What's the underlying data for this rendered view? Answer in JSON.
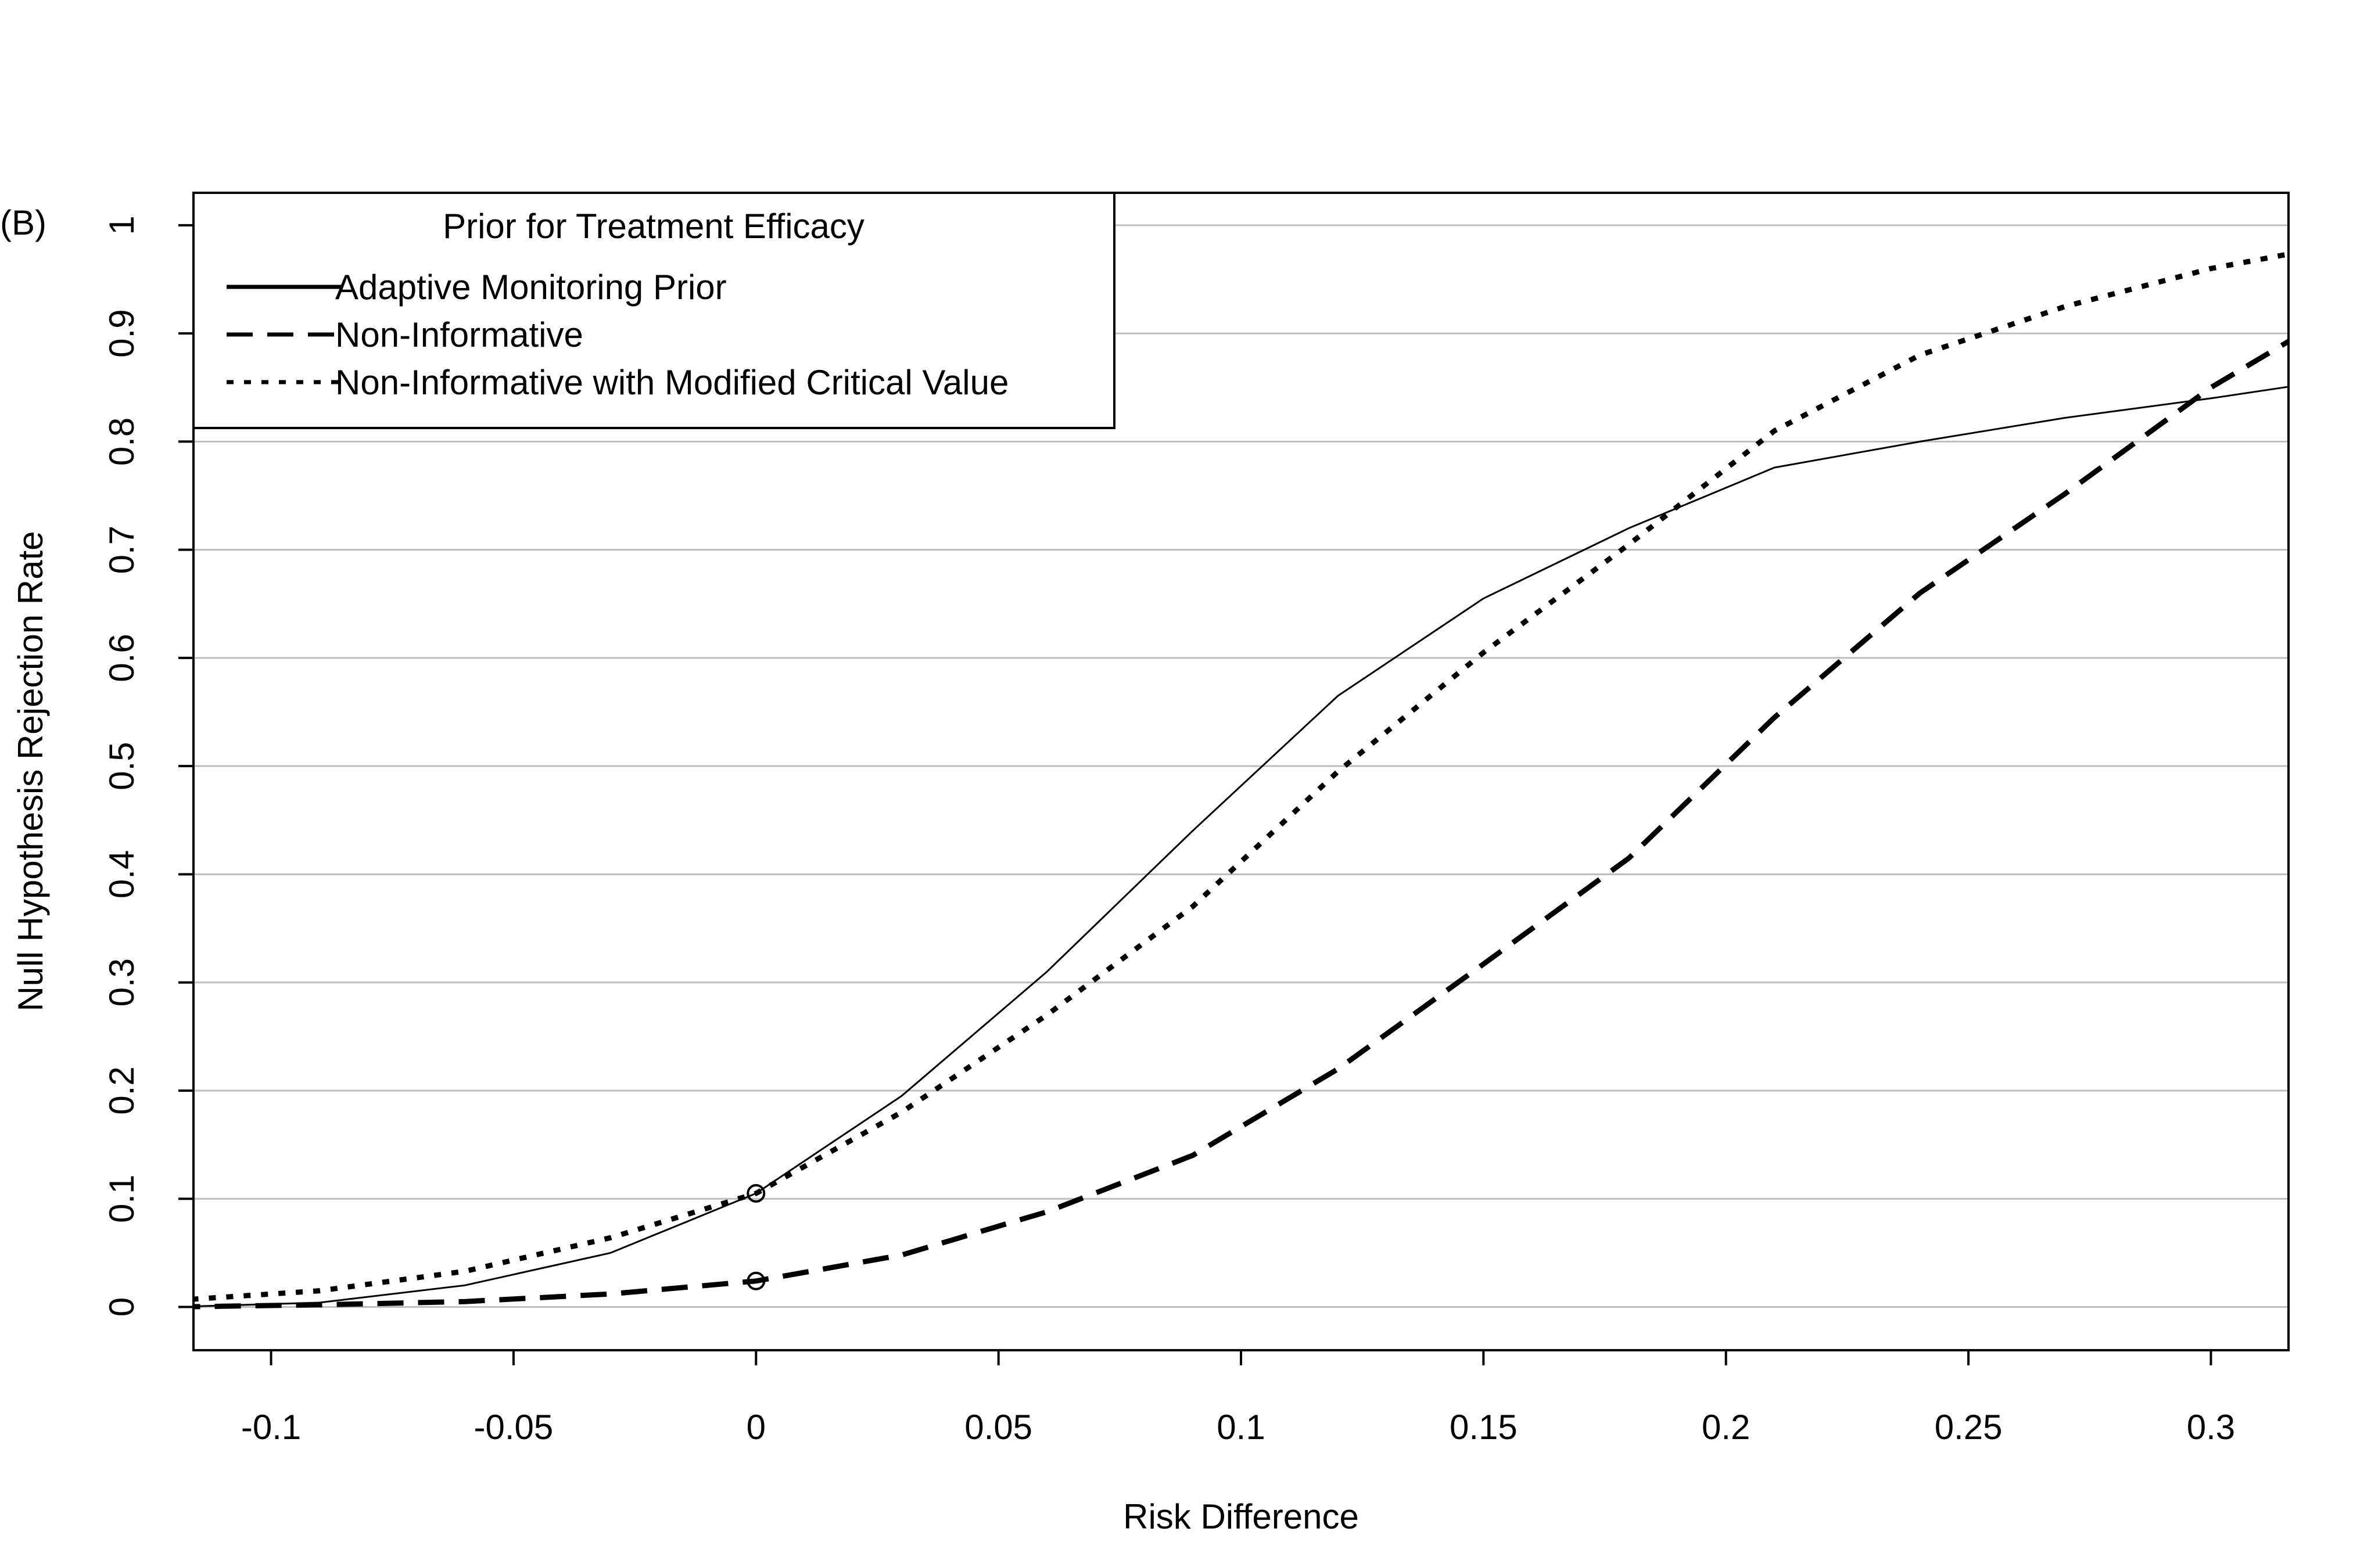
{
  "panel_label": "(B)",
  "chart_data": {
    "type": "line",
    "title": "",
    "xlabel": "Risk Difference",
    "ylabel": "Null Hypothesis Rejection Rate",
    "xlim": [
      -0.116,
      0.316
    ],
    "ylim": [
      -0.04,
      1.03
    ],
    "x_ticks": [
      -0.1,
      -0.05,
      0,
      0.05,
      0.1,
      0.15,
      0.2,
      0.25,
      0.3
    ],
    "x_tick_labels": [
      "-0.1",
      "-0.05",
      "0",
      "0.05",
      "0.1",
      "0.15",
      "0.2",
      "0.25",
      "0.3"
    ],
    "y_ticks": [
      0,
      0.1,
      0.2,
      0.3,
      0.4,
      0.5,
      0.6,
      0.7,
      0.8,
      0.9,
      1
    ],
    "y_tick_labels": [
      "0",
      "0.1",
      "0.2",
      "0.3",
      "0.4",
      "0.5",
      "0.6",
      "0.7",
      "0.8",
      "0.9",
      "1"
    ],
    "grid": "horizontal",
    "legend": {
      "title": "Prior for Treatment Efficacy",
      "position": "top-left"
    },
    "series": [
      {
        "name": "Adaptive Monitoring Prior",
        "style": "solid",
        "x": [
          -0.12,
          -0.09,
          -0.06,
          -0.03,
          0,
          0.03,
          0.06,
          0.09,
          0.12,
          0.15,
          0.18,
          0.21,
          0.24,
          0.27,
          0.3,
          0.33
        ],
        "y": [
          0,
          0.004,
          0.02,
          0.05,
          0.105,
          0.195,
          0.31,
          0.44,
          0.565,
          0.655,
          0.72,
          0.776,
          0.8,
          0.822,
          0.84,
          0.86
        ]
      },
      {
        "name": "Non-Informative",
        "style": "dashed",
        "x": [
          -0.12,
          -0.09,
          -0.06,
          -0.03,
          0,
          0.03,
          0.06,
          0.09,
          0.12,
          0.15,
          0.18,
          0.21,
          0.24,
          0.27,
          0.3,
          0.33
        ],
        "y": [
          0,
          0.002,
          0.005,
          0.012,
          0.024,
          0.048,
          0.088,
          0.14,
          0.22,
          0.317,
          0.415,
          0.545,
          0.66,
          0.752,
          0.85,
          0.93
        ]
      },
      {
        "name": "Non-Informative with Modified Critical Value",
        "style": "dotted",
        "x": [
          -0.12,
          -0.09,
          -0.06,
          -0.03,
          0,
          0.03,
          0.06,
          0.09,
          0.12,
          0.15,
          0.18,
          0.21,
          0.24,
          0.27,
          0.3,
          0.33
        ],
        "y": [
          0.006,
          0.015,
          0.033,
          0.064,
          0.105,
          0.18,
          0.27,
          0.37,
          0.495,
          0.605,
          0.705,
          0.81,
          0.88,
          0.925,
          0.96,
          0.985
        ]
      }
    ],
    "markers": [
      {
        "x": 0,
        "y": 0.105,
        "shape": "open-circle"
      },
      {
        "x": 0,
        "y": 0.024,
        "shape": "open-circle"
      }
    ]
  }
}
